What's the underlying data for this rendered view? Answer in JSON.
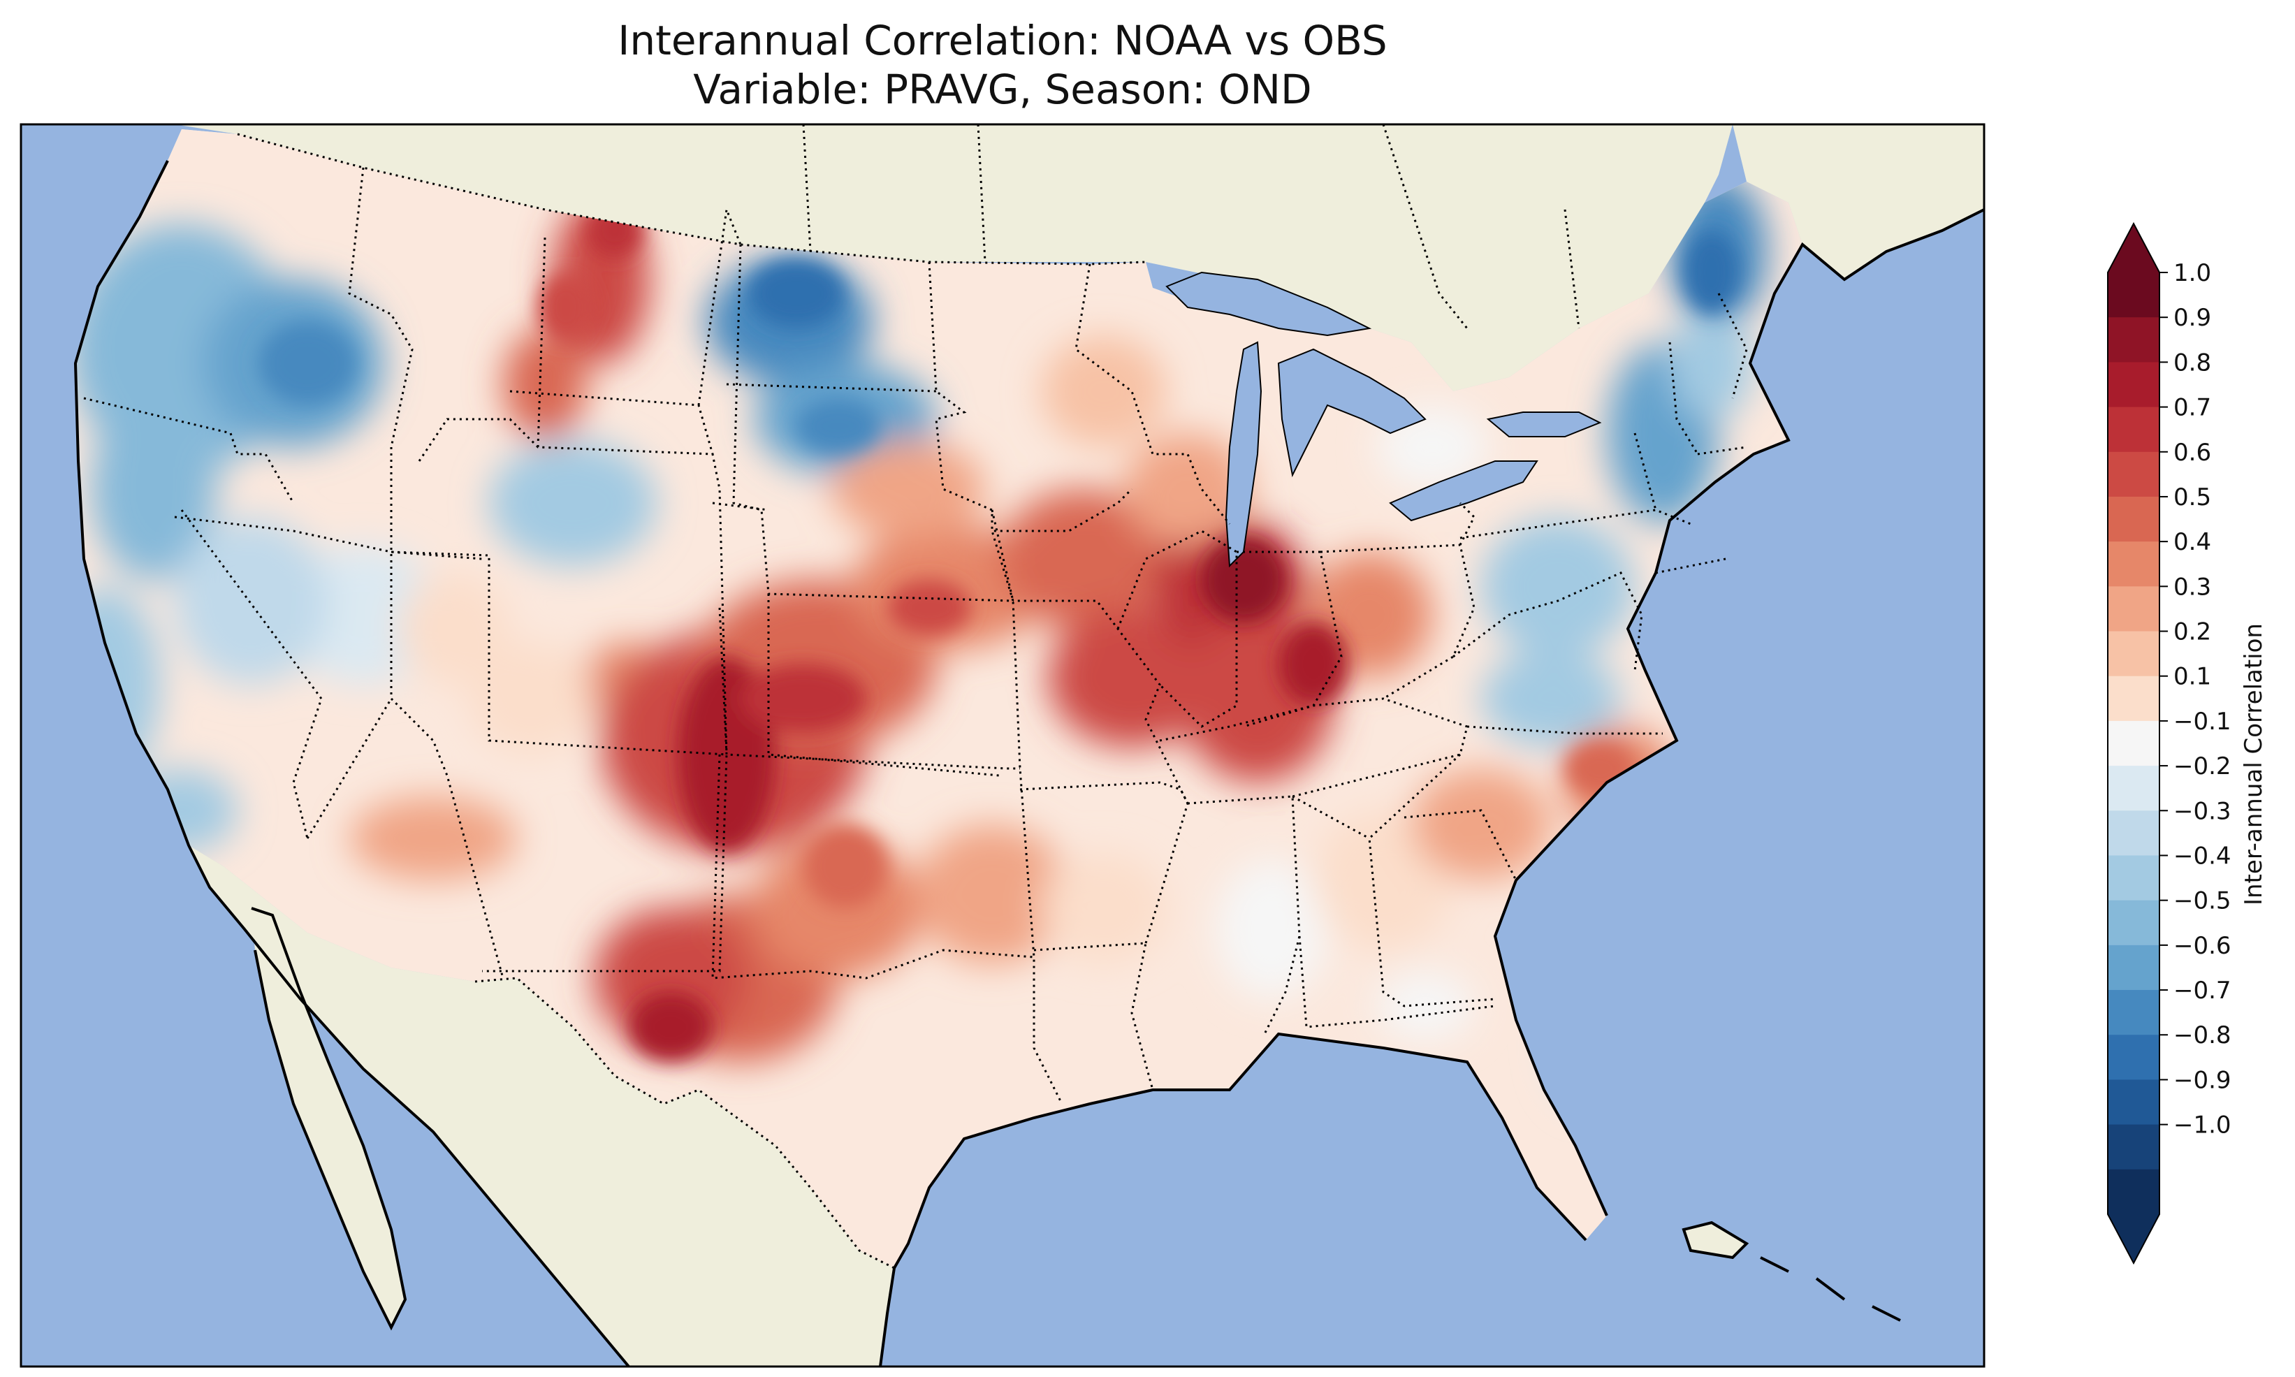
{
  "title_line1": "Interannual Correlation: NOAA vs OBS",
  "title_line2": "Variable: PRAVG, Season: OND",
  "colors": {
    "ocean": "#95b4e0",
    "land": "#efeedc",
    "lake": "#95b4e0",
    "frame": "#000000"
  },
  "colorbar": {
    "label": "Inter-annual Correlation",
    "ticks": [
      "1.0",
      "0.9",
      "0.8",
      "0.7",
      "0.6",
      "0.5",
      "0.4",
      "0.3",
      "0.2",
      "0.1",
      "−0.1",
      "−0.2",
      "−0.3",
      "−0.4",
      "−0.5",
      "−0.6",
      "−0.7",
      "−0.8",
      "−0.9",
      "−1.0"
    ],
    "colors": [
      "#6b0a1f",
      "#8f1426",
      "#a81c2c",
      "#bd3137",
      "#cc4a44",
      "#d96752",
      "#e68769",
      "#f0a586",
      "#f7c2a6",
      "#fbdecb",
      "#f6f6f6",
      "#dbe9f2",
      "#c0d9ea",
      "#a3cae2",
      "#86b9d9",
      "#65a3cd",
      "#4689bf",
      "#2f70af",
      "#205996",
      "#174379",
      "#0f2f5c"
    ],
    "extend": "both"
  },
  "map": {
    "region": "Contiguous United States",
    "field": "interannual correlation",
    "high_correlation_regions": [
      "Texas",
      "Oklahoma",
      "Kansas",
      "Missouri",
      "Illinois",
      "Indiana",
      "Kentucky",
      "Ohio"
    ],
    "low_correlation_regions": [
      "Pacific Northwest",
      "Montana",
      "Dakotas",
      "Northeast",
      "Virginia"
    ]
  }
}
